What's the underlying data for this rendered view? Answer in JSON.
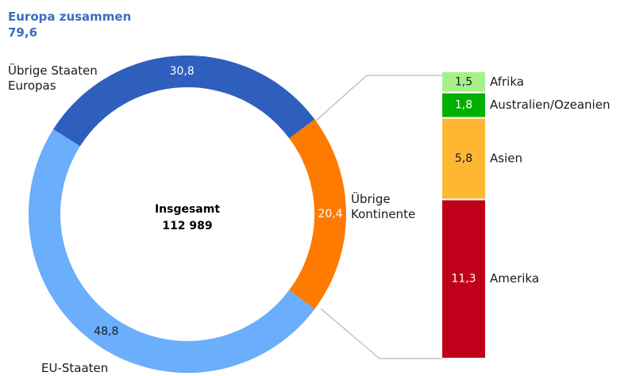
{
  "chart_data": [
    {
      "type": "donut",
      "title": "Europa zusammen",
      "subtitle": "79,6",
      "center_text": [
        "Insgesamt",
        "112 989"
      ],
      "categories": [
        "Übrige Kontinente",
        "EU-Staaten",
        "Übrige Staaten Europas"
      ],
      "values": [
        20.4,
        48.8,
        30.8
      ],
      "value_labels": [
        "20,4",
        "48,8",
        "30,8"
      ],
      "colors": [
        "#ff7a00",
        "#6aaefc",
        "#2e5fbd"
      ],
      "label_colors": [
        "#ffffff",
        "#1a1a1a",
        "#ffffff"
      ]
    },
    {
      "type": "stacked_bar",
      "categories": [
        "Afrika",
        "Australien/Ozeanien",
        "Asien",
        "Amerika"
      ],
      "values": [
        1.5,
        1.8,
        5.8,
        11.3
      ],
      "value_labels": [
        "1,5",
        "1,8",
        "5,8",
        "11,3"
      ],
      "colors": [
        "#a6f08c",
        "#00b000",
        "#ffb732",
        "#c0001a"
      ],
      "label_colors": [
        "#1a1a1a",
        "#ffffff",
        "#1a1a1a",
        "#ffffff"
      ]
    }
  ]
}
